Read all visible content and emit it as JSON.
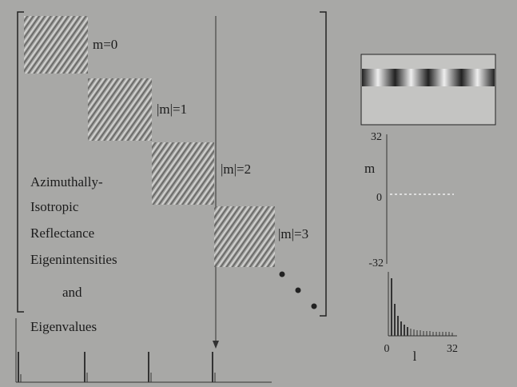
{
  "figure": {
    "patch_labels": [
      "m=0",
      "|m|=1",
      "|m|=2",
      "|m|=3"
    ],
    "caption_lines": [
      "Azimuthally-",
      "Isotropic",
      "Reflectance",
      "Eigenintensities",
      "and",
      "Eigenvalues"
    ],
    "spectrum_plot": {
      "y_label": "m",
      "y_tick_labels": [
        "32",
        "0",
        "-32"
      ],
      "x_tick_labels": [
        "0",
        "32"
      ],
      "x_label": "l"
    }
  }
}
